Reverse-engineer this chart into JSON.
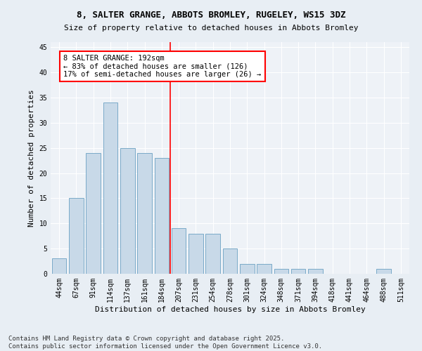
{
  "title1": "8, SALTER GRANGE, ABBOTS BROMLEY, RUGELEY, WS15 3DZ",
  "title2": "Size of property relative to detached houses in Abbots Bromley",
  "xlabel": "Distribution of detached houses by size in Abbots Bromley",
  "ylabel": "Number of detached properties",
  "categories": [
    "44sqm",
    "67sqm",
    "91sqm",
    "114sqm",
    "137sqm",
    "161sqm",
    "184sqm",
    "207sqm",
    "231sqm",
    "254sqm",
    "278sqm",
    "301sqm",
    "324sqm",
    "348sqm",
    "371sqm",
    "394sqm",
    "418sqm",
    "441sqm",
    "464sqm",
    "488sqm",
    "511sqm"
  ],
  "values": [
    3,
    15,
    24,
    34,
    25,
    24,
    23,
    9,
    8,
    8,
    5,
    2,
    2,
    1,
    1,
    1,
    0,
    0,
    0,
    1,
    0
  ],
  "bar_color": "#c8d9e8",
  "bar_edge_color": "#7aaac8",
  "annotation_text": "8 SALTER GRANGE: 192sqm\n← 83% of detached houses are smaller (126)\n17% of semi-detached houses are larger (26) →",
  "vline_color": "red",
  "annotation_box_color": "white",
  "annotation_box_edge": "red",
  "ylim": [
    0,
    46
  ],
  "yticks": [
    0,
    5,
    10,
    15,
    20,
    25,
    30,
    35,
    40,
    45
  ],
  "footer1": "Contains HM Land Registry data © Crown copyright and database right 2025.",
  "footer2": "Contains public sector information licensed under the Open Government Licence v3.0.",
  "bg_color": "#e8eef4",
  "plot_bg_color": "#eef2f7",
  "grid_color": "white",
  "title1_fontsize": 9,
  "title2_fontsize": 8,
  "axis_label_fontsize": 8,
  "tick_fontsize": 7,
  "annotation_fontsize": 7.5,
  "footer_fontsize": 6.5
}
